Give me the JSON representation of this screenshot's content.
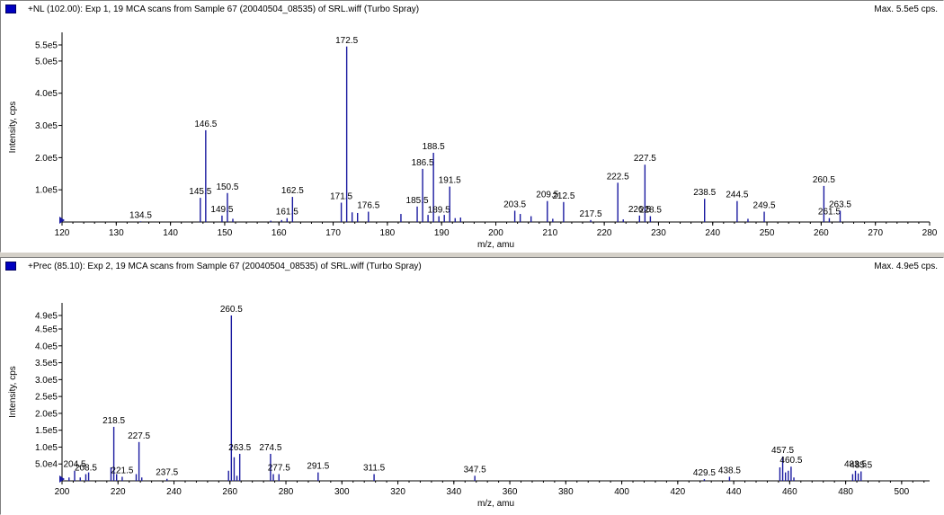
{
  "panels": [
    {
      "header": {
        "title": "+NL (102.00): Exp 1, 19 MCA scans from Sample 67 (20040504_08535) of SRL.wiff (Turbo Spray)",
        "max": "Max. 5.5e5 cps."
      },
      "accent": "#1a1aa0"
    },
    {
      "header": {
        "title": "+Prec (85.10): Exp 2, 19 MCA scans from Sample 67 (20040504_08535) of SRL.wiff (Turbo Spray)",
        "max": "Max. 4.9e5 cps."
      },
      "accent": "#1a1aa0"
    }
  ],
  "chart_data": [
    {
      "type": "bar",
      "xlabel": "m/z, amu",
      "ylabel": "Intensity, cps",
      "xlim": [
        120,
        280
      ],
      "ylim": [
        0,
        550000
      ],
      "xticks": [
        120,
        130,
        140,
        150,
        160,
        170,
        180,
        190,
        200,
        210,
        220,
        230,
        240,
        250,
        260,
        270,
        280
      ],
      "yticks": [
        {
          "v": 100000,
          "label": "1.0e5"
        },
        {
          "v": 200000,
          "label": "2.0e5"
        },
        {
          "v": 300000,
          "label": "3.0e5"
        },
        {
          "v": 400000,
          "label": "4.0e5"
        },
        {
          "v": 500000,
          "label": "5.0e5"
        },
        {
          "v": 550000,
          "label": "5.5e5"
        }
      ],
      "peaks": [
        {
          "x": 134.5,
          "y": 2000,
          "label": "134.5"
        },
        {
          "x": 145.5,
          "y": 75000,
          "label": "145.5"
        },
        {
          "x": 146.5,
          "y": 285000,
          "label": "146.5"
        },
        {
          "x": 149.5,
          "y": 20000,
          "label": "149.5"
        },
        {
          "x": 150.5,
          "y": 90000,
          "label": "150.5"
        },
        {
          "x": 151.5,
          "y": 10000
        },
        {
          "x": 158.5,
          "y": 4000
        },
        {
          "x": 160.5,
          "y": 6000
        },
        {
          "x": 161.5,
          "y": 12000,
          "label": "161.5"
        },
        {
          "x": 162.5,
          "y": 78000,
          "label": "162.5"
        },
        {
          "x": 171.5,
          "y": 60000,
          "label": "171.5"
        },
        {
          "x": 172.5,
          "y": 545000,
          "label": "172.5"
        },
        {
          "x": 173.5,
          "y": 30000
        },
        {
          "x": 174.5,
          "y": 28000
        },
        {
          "x": 176.5,
          "y": 32000,
          "label": "176.5"
        },
        {
          "x": 182.5,
          "y": 25000
        },
        {
          "x": 185.5,
          "y": 48000,
          "label": "185.5"
        },
        {
          "x": 186.5,
          "y": 165000,
          "label": "186.5"
        },
        {
          "x": 187.5,
          "y": 22000
        },
        {
          "x": 188.5,
          "y": 215000,
          "label": "188.5"
        },
        {
          "x": 189.5,
          "y": 18000,
          "label": "189.5"
        },
        {
          "x": 190.5,
          "y": 22000
        },
        {
          "x": 191.5,
          "y": 110000,
          "label": "191.5"
        },
        {
          "x": 192.5,
          "y": 12000
        },
        {
          "x": 193.5,
          "y": 14000
        },
        {
          "x": 203.5,
          "y": 35000,
          "label": "203.5"
        },
        {
          "x": 204.5,
          "y": 25000
        },
        {
          "x": 206.5,
          "y": 18000
        },
        {
          "x": 209.5,
          "y": 65000,
          "label": "209.5"
        },
        {
          "x": 210.5,
          "y": 10000
        },
        {
          "x": 212.5,
          "y": 62000,
          "label": "212.5"
        },
        {
          "x": 217.5,
          "y": 6000,
          "label": "217.5"
        },
        {
          "x": 222.5,
          "y": 122000,
          "label": "222.5"
        },
        {
          "x": 223.5,
          "y": 8000
        },
        {
          "x": 226.5,
          "y": 20000,
          "label": "226.5"
        },
        {
          "x": 227.5,
          "y": 178000,
          "label": "227.5"
        },
        {
          "x": 228.5,
          "y": 18000,
          "label": "228.5"
        },
        {
          "x": 238.5,
          "y": 72000,
          "label": "238.5"
        },
        {
          "x": 244.5,
          "y": 65000,
          "label": "244.5"
        },
        {
          "x": 246.5,
          "y": 10000
        },
        {
          "x": 249.5,
          "y": 32000,
          "label": "249.5"
        },
        {
          "x": 260.5,
          "y": 112000,
          "label": "260.5"
        },
        {
          "x": 261.5,
          "y": 12000,
          "label": "261.5"
        },
        {
          "x": 263.5,
          "y": 35000,
          "label": "263.5"
        }
      ]
    },
    {
      "type": "bar",
      "xlabel": "m/z, amu",
      "ylabel": "Intensity, cps",
      "xlim": [
        200,
        510
      ],
      "ylim": [
        0,
        490000
      ],
      "xticks": [
        200,
        220,
        240,
        260,
        280,
        300,
        320,
        340,
        360,
        380,
        400,
        420,
        440,
        460,
        480,
        500
      ],
      "yticks": [
        {
          "v": 50000,
          "label": "5.0e4"
        },
        {
          "v": 100000,
          "label": "1.0e5"
        },
        {
          "v": 150000,
          "label": "1.5e5"
        },
        {
          "v": 200000,
          "label": "2.0e5"
        },
        {
          "v": 250000,
          "label": "2.5e5"
        },
        {
          "v": 300000,
          "label": "3.0e5"
        },
        {
          "v": 350000,
          "label": "3.5e5"
        },
        {
          "v": 400000,
          "label": "4.0e5"
        },
        {
          "v": 450000,
          "label": "4.5e5"
        },
        {
          "v": 490000,
          "label": "4.9e5"
        }
      ],
      "peaks": [
        {
          "x": 202.5,
          "y": 10000
        },
        {
          "x": 204.5,
          "y": 30000,
          "label": "204.5"
        },
        {
          "x": 206.5,
          "y": 10000
        },
        {
          "x": 208.5,
          "y": 20000,
          "label": "208.5"
        },
        {
          "x": 209.5,
          "y": 25000
        },
        {
          "x": 217.5,
          "y": 40000
        },
        {
          "x": 218.5,
          "y": 160000,
          "label": "218.5"
        },
        {
          "x": 219.5,
          "y": 20000
        },
        {
          "x": 221.5,
          "y": 12000,
          "label": "221.5"
        },
        {
          "x": 226.5,
          "y": 20000
        },
        {
          "x": 227.5,
          "y": 115000,
          "label": "227.5"
        },
        {
          "x": 228.5,
          "y": 10000
        },
        {
          "x": 237.5,
          "y": 6000,
          "label": "237.5"
        },
        {
          "x": 259.5,
          "y": 30000
        },
        {
          "x": 260.5,
          "y": 490000,
          "label": "260.5"
        },
        {
          "x": 261.5,
          "y": 70000
        },
        {
          "x": 262.5,
          "y": 15000
        },
        {
          "x": 263.5,
          "y": 80000,
          "label": "263.5"
        },
        {
          "x": 274.5,
          "y": 80000,
          "label": "274.5"
        },
        {
          "x": 275.5,
          "y": 20000
        },
        {
          "x": 277.5,
          "y": 20000,
          "label": "277.5"
        },
        {
          "x": 291.5,
          "y": 25000,
          "label": "291.5"
        },
        {
          "x": 311.5,
          "y": 20000,
          "label": "311.5"
        },
        {
          "x": 347.5,
          "y": 15000,
          "label": "347.5"
        },
        {
          "x": 429.5,
          "y": 5000,
          "label": "429.5"
        },
        {
          "x": 438.5,
          "y": 12000,
          "label": "438.5"
        },
        {
          "x": 456.5,
          "y": 40000
        },
        {
          "x": 457.5,
          "y": 72000,
          "label": "457.5"
        },
        {
          "x": 458.5,
          "y": 25000
        },
        {
          "x": 459.5,
          "y": 30000
        },
        {
          "x": 460.5,
          "y": 42000,
          "label": "460.5"
        },
        {
          "x": 461.5,
          "y": 10000
        },
        {
          "x": 482.5,
          "y": 20000
        },
        {
          "x": 483.5,
          "y": 30000,
          "label": "483.5"
        },
        {
          "x": 484.5,
          "y": 22000
        },
        {
          "x": 485.5,
          "y": 28000,
          "label": "485.5"
        }
      ]
    }
  ]
}
